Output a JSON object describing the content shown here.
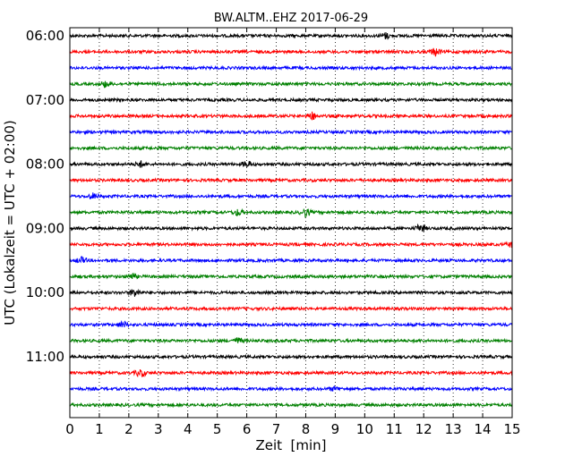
{
  "chart_data": {
    "type": "line",
    "title": "BW.ALTM..EHZ 2017-06-29",
    "xlabel": "Zeit  [min]",
    "ylabel": "UTC (Lokalzeit = UTC + 02:00)",
    "xlim": [
      0,
      15
    ],
    "x_ticks": [
      "0",
      "1",
      "2",
      "3",
      "4",
      "5",
      "6",
      "7",
      "8",
      "9",
      "10",
      "11",
      "12",
      "13",
      "14",
      "15"
    ],
    "y_ticks": [
      "06:00",
      "07:00",
      "08:00",
      "09:00",
      "10:00",
      "11:00"
    ],
    "grid": "vertical dotted lines at each minute",
    "trace_colors": [
      "#000000",
      "#ff0000",
      "#0000ff",
      "#008000"
    ],
    "traces": [
      {
        "start": "06:00",
        "color": "#000000",
        "events": [
          {
            "x": 10.7,
            "amp": 3
          }
        ]
      },
      {
        "start": "06:15",
        "color": "#ff0000",
        "events": [
          {
            "x": 12.4,
            "amp": 4
          }
        ]
      },
      {
        "start": "06:30",
        "color": "#0000ff",
        "events": []
      },
      {
        "start": "06:45",
        "color": "#008000",
        "events": [
          {
            "x": 1.2,
            "amp": 3
          }
        ]
      },
      {
        "start": "07:00",
        "color": "#000000",
        "events": []
      },
      {
        "start": "07:15",
        "color": "#ff0000",
        "events": [
          {
            "x": 8.2,
            "amp": 4
          }
        ]
      },
      {
        "start": "07:30",
        "color": "#0000ff",
        "events": []
      },
      {
        "start": "07:45",
        "color": "#008000",
        "events": []
      },
      {
        "start": "08:00",
        "color": "#000000",
        "events": [
          {
            "x": 2.4,
            "amp": 3
          },
          {
            "x": 6.0,
            "amp": 3
          }
        ]
      },
      {
        "start": "08:15",
        "color": "#ff0000",
        "events": []
      },
      {
        "start": "08:30",
        "color": "#0000ff",
        "events": [
          {
            "x": 0.8,
            "amp": 3
          }
        ]
      },
      {
        "start": "08:45",
        "color": "#008000",
        "events": [
          {
            "x": 5.7,
            "amp": 3
          },
          {
            "x": 8.0,
            "amp": 4
          }
        ]
      },
      {
        "start": "09:00",
        "color": "#000000",
        "events": [
          {
            "x": 11.9,
            "amp": 4
          }
        ]
      },
      {
        "start": "09:15",
        "color": "#ff0000",
        "events": [
          {
            "x": 15.0,
            "amp": 3
          }
        ]
      },
      {
        "start": "09:30",
        "color": "#0000ff",
        "events": [
          {
            "x": 0.4,
            "amp": 3
          }
        ]
      },
      {
        "start": "09:45",
        "color": "#008000",
        "events": [
          {
            "x": 2.1,
            "amp": 3
          }
        ]
      },
      {
        "start": "10:00",
        "color": "#000000",
        "events": [
          {
            "x": 2.2,
            "amp": 4
          }
        ]
      },
      {
        "start": "10:15",
        "color": "#ff0000",
        "events": []
      },
      {
        "start": "10:30",
        "color": "#0000ff",
        "events": [
          {
            "x": 1.8,
            "amp": 3
          }
        ]
      },
      {
        "start": "10:45",
        "color": "#008000",
        "events": [
          {
            "x": 5.7,
            "amp": 3
          }
        ]
      },
      {
        "start": "11:00",
        "color": "#000000",
        "events": []
      },
      {
        "start": "11:15",
        "color": "#ff0000",
        "events": [
          {
            "x": 2.4,
            "amp": 4
          }
        ]
      },
      {
        "start": "11:30",
        "color": "#0000ff",
        "events": [
          {
            "x": 9.0,
            "amp": 2
          }
        ]
      },
      {
        "start": "11:45",
        "color": "#008000",
        "events": []
      }
    ]
  }
}
